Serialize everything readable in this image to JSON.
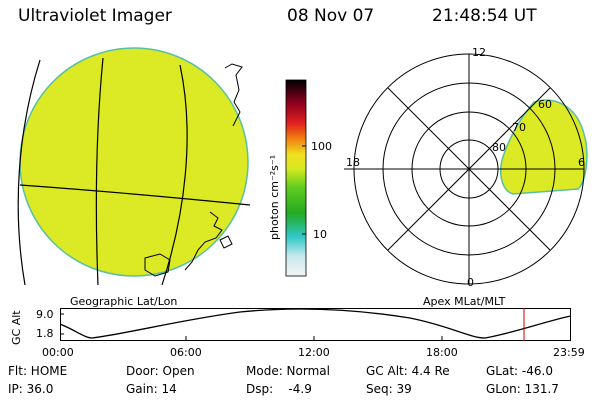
{
  "header": {
    "instrument": "Ultraviolet Imager",
    "date": "08 Nov 07",
    "time": "21:48:54 UT"
  },
  "colorbar": {
    "unit_label": "photon cm⁻²s⁻¹",
    "ticks": [
      "100",
      "10"
    ],
    "scale": "log"
  },
  "left_panel": {
    "caption": "Geographic Lat/Lon",
    "fill_color": "#dbea25"
  },
  "right_panel": {
    "caption": "Apex MLat/MLT",
    "mlt_labels": {
      "top": "12",
      "bottom": "0",
      "left": "18",
      "right": "6"
    },
    "mlat_labels": [
      "60",
      "70",
      "80"
    ],
    "fill_color": "#dbea25"
  },
  "altitude_plot": {
    "ylabel": "GC Alt",
    "yticks": [
      "9.0",
      "1.8"
    ],
    "xticks": [
      "00:00",
      "06:00",
      "12:00",
      "18:00",
      "23:59"
    ],
    "marker_color": "#cc0000"
  },
  "info_rows": [
    [
      "Flt: HOME",
      "Door: Open",
      "Mode: Normal",
      "GC Alt: 4.4 Re",
      "GLat: -46.0"
    ],
    [
      "IP: 36.0",
      "Gain: 14",
      "Dsp:    -4.9",
      "Seq: 39",
      "GLon: 131.7"
    ]
  ]
}
